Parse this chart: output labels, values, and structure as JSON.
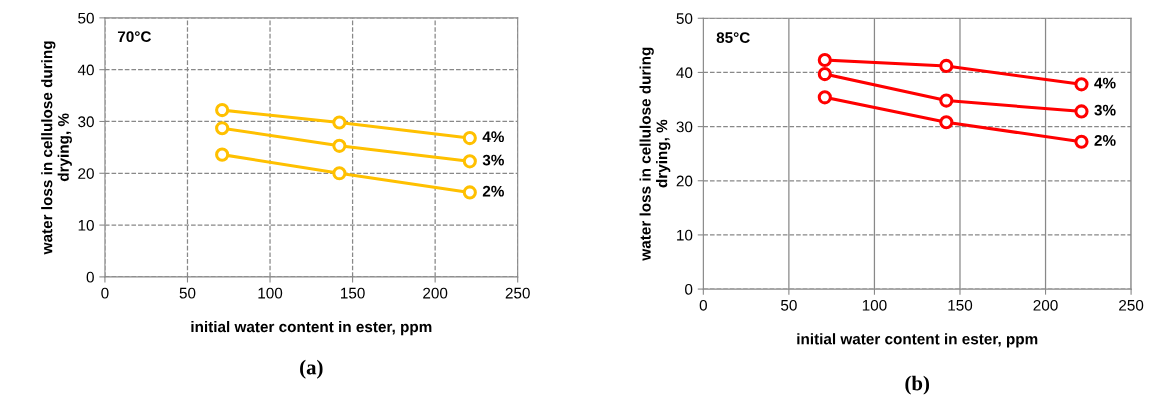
{
  "chart_data": [
    {
      "type": "line",
      "xlabel": "initial water content in ester, ppm",
      "ylabel": "water loss in cellulose during drying, %",
      "annotations": [
        "70°C",
        "(a)"
      ],
      "x": [
        71,
        142,
        221
      ],
      "xlim": [
        0,
        250
      ],
      "xticks": [
        0,
        50,
        100,
        150,
        200,
        250
      ],
      "ylim": [
        0,
        50
      ],
      "yticks": [
        0,
        10,
        20,
        30,
        40,
        50
      ],
      "grid": true,
      "marker": "circle",
      "line_style": "solid",
      "legend": false,
      "series": [
        {
          "name": "4%",
          "color": "#ffc000",
          "values": [
            32.2,
            29.8,
            26.8
          ]
        },
        {
          "name": "3%",
          "color": "#ffc000",
          "values": [
            28.7,
            25.3,
            22.3
          ]
        },
        {
          "name": "2%",
          "color": "#ffc000",
          "values": [
            23.6,
            20.0,
            16.3
          ]
        }
      ]
    },
    {
      "type": "line",
      "xlabel": "initial water content in ester, ppm",
      "ylabel": "water loss in cellulose during drying, %",
      "annotations": [
        "85°C",
        "(b)"
      ],
      "x": [
        71,
        142,
        221
      ],
      "xlim": [
        0,
        250
      ],
      "xticks": [
        0,
        50,
        100,
        150,
        200,
        250
      ],
      "ylim": [
        0,
        50
      ],
      "yticks": [
        0,
        10,
        20,
        30,
        40,
        50
      ],
      "grid": true,
      "marker": "circle",
      "line_style": "solid",
      "legend": false,
      "series": [
        {
          "name": "4%",
          "color": "#ff0000",
          "values": [
            42.3,
            41.2,
            37.8
          ]
        },
        {
          "name": "3%",
          "color": "#ff0000",
          "values": [
            39.7,
            34.8,
            32.8
          ]
        },
        {
          "name": "2%",
          "color": "#ff0000",
          "values": [
            35.4,
            30.8,
            27.2
          ]
        }
      ]
    }
  ]
}
